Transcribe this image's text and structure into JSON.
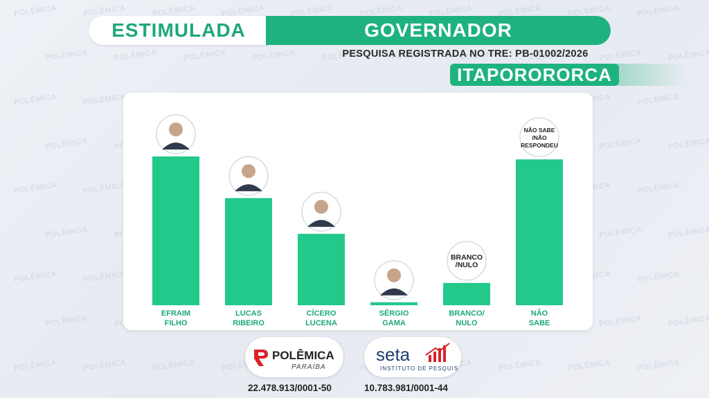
{
  "header": {
    "left_label": "ESTIMULADA",
    "right_label": "GOVERNADOR",
    "registration": "PESQUISA REGISTRADA NO TRE: PB-01002/2026",
    "city": "ITAPORORORCA"
  },
  "colors": {
    "bar": "#23c98b",
    "accent": "#1eb27f",
    "label": "#1ea877",
    "bubble_text": "#222222"
  },
  "chart_data": {
    "type": "bar",
    "categories": [
      [
        "EFRAIM",
        "FILHO"
      ],
      [
        "LUCAS",
        "RIBEIRO"
      ],
      [
        "CÍCERO",
        "LUCENA"
      ],
      [
        "SÉRGIO",
        "GAMA"
      ],
      [
        "BRANCO/",
        "NULO"
      ],
      [
        "NÃO",
        "SABE"
      ]
    ],
    "values": [
      100,
      72,
      48,
      2,
      15,
      98
    ],
    "ylim": [
      0,
      100
    ],
    "markers": [
      {
        "kind": "photo",
        "icon": "candidate-photo-icon"
      },
      {
        "kind": "photo",
        "icon": "candidate-photo-icon"
      },
      {
        "kind": "photo",
        "icon": "candidate-photo-icon"
      },
      {
        "kind": "photo",
        "icon": "candidate-photo-icon"
      },
      {
        "kind": "text",
        "text": [
          "BRANCO",
          "/NULO"
        ]
      },
      {
        "kind": "text",
        "text": [
          "NÃO SABE",
          "/NÃO",
          "RESPONDEU"
        ]
      }
    ],
    "xlabel": "",
    "ylabel": "",
    "grid": false
  },
  "footer": {
    "logo1": {
      "main": "POLÊMICA",
      "sub": "PARAÍBA",
      "icon": "polemica-logo-icon"
    },
    "logo2": {
      "main": "seta",
      "sub": "INSTITUTO DE PESQUISA",
      "icon": "seta-chart-icon"
    },
    "cnpj1": "22.478.913/0001-50",
    "cnpj2": "10.783.981/0001-44"
  },
  "watermark": "POLÊMICA"
}
